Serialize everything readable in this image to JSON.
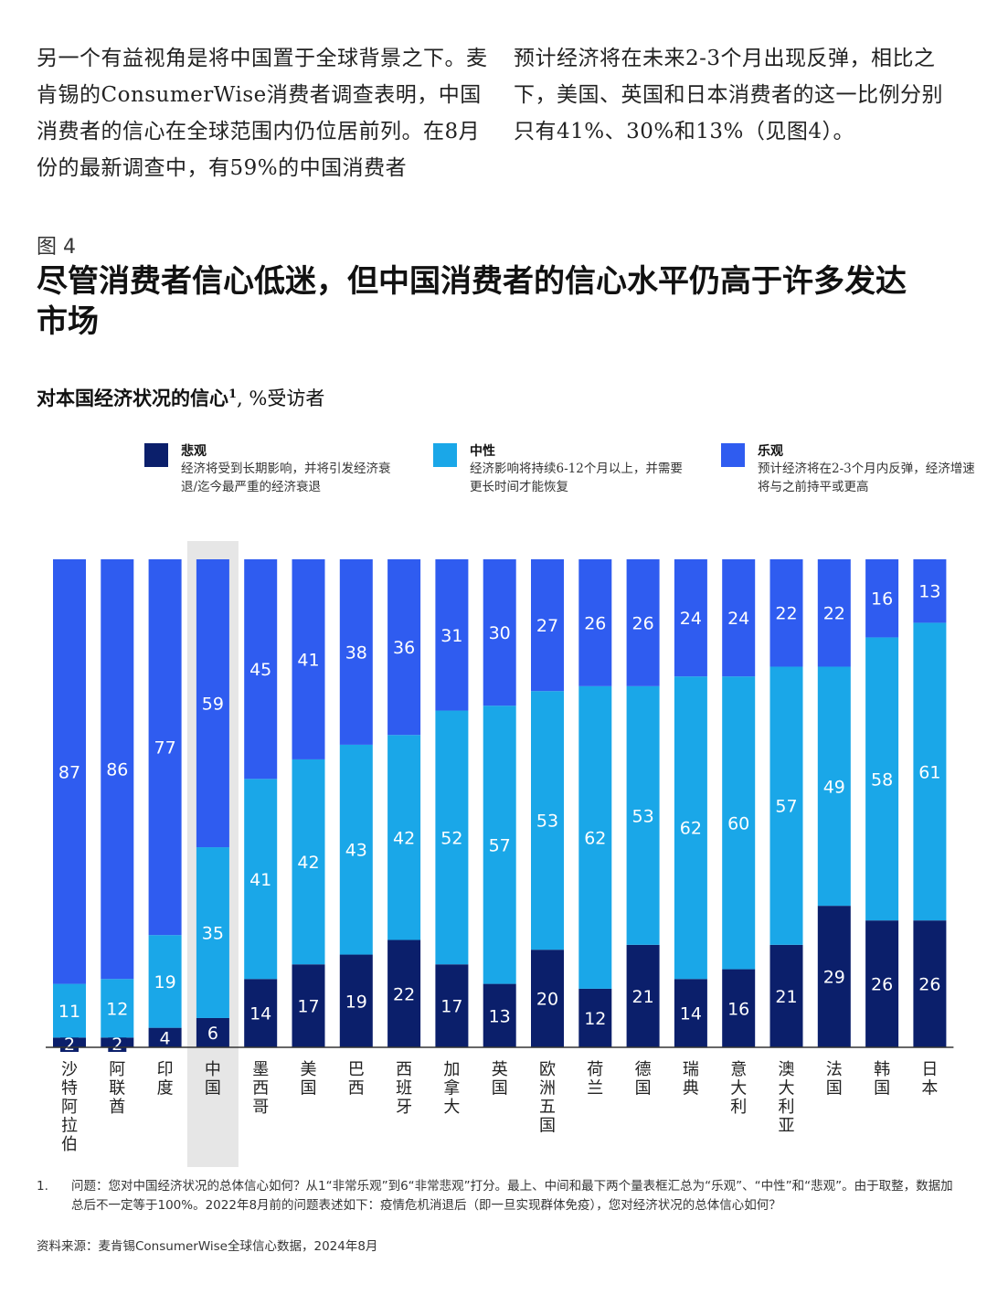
{
  "intro": {
    "left_paragraph": "另一个有益视角是将中国置于全球背景之下。麦肯锡的ConsumerWise消费者调查表明，中国消费者的信心在全球范围内仍位居前列。在8月份的最新调查中，有59%的中国消费者",
    "right_paragraph": "预计经济将在未来2-3个月出现反弹，相比之下，美国、英国和日本消费者的这一比例分别只有41%、30%和13%（见图4）。"
  },
  "figure": {
    "number": "图 4",
    "title": "尽管消费者信心低迷，但中国消费者的信心水平仍高于许多发达市场",
    "subtitle": "对本国经济状况的信心",
    "subtitle_sup": "1",
    "subtitle_unit": ", %受访者"
  },
  "legend": [
    {
      "name": "悲观",
      "description": "经济将受到长期影响，并将引发经济衰退/迄今最严重的经济衰退",
      "color": "#0b1f6b"
    },
    {
      "name": "中性",
      "description": "经济影响将持续6-12个月以上，并需要更长时间才能恢复",
      "color": "#1aa7e8"
    },
    {
      "name": "乐观",
      "description": "预计经济将在2-3个月内反弹，经济增速将与之前持平或更高",
      "color": "#2f5cf0"
    }
  ],
  "chart_data": {
    "type": "bar",
    "stacked": true,
    "orientation": "vertical",
    "highlight_category": "中国",
    "ylim": [
      0,
      100
    ],
    "categories": [
      "沙特阿拉伯",
      "阿联酋",
      "印度",
      "中国",
      "墨西哥",
      "美国",
      "巴西",
      "西班牙",
      "加拿大",
      "英国",
      "欧洲五国",
      "荷兰",
      "德国",
      "瑞典",
      "意大利",
      "澳大利亚",
      "法国",
      "韩国",
      "日本"
    ],
    "series": [
      {
        "name": "悲观",
        "color": "#0b1f6b",
        "values": [
          2,
          2,
          4,
          6,
          14,
          17,
          19,
          22,
          17,
          13,
          20,
          12,
          21,
          14,
          16,
          21,
          29,
          26,
          26
        ]
      },
      {
        "name": "中性",
        "color": "#1aa7e8",
        "values": [
          11,
          12,
          19,
          35,
          41,
          42,
          43,
          42,
          52,
          57,
          53,
          62,
          53,
          62,
          60,
          57,
          49,
          58,
          61
        ]
      },
      {
        "name": "乐观",
        "color": "#2f5cf0",
        "values": [
          87,
          86,
          77,
          59,
          45,
          41,
          38,
          36,
          31,
          30,
          27,
          26,
          26,
          24,
          24,
          22,
          22,
          16,
          13
        ]
      }
    ]
  },
  "footnote": {
    "number": "1.",
    "text": "问题：您对中国经济状况的总体信心如何？从1“非常乐观”到6“非常悲观”打分。最上、中间和最下两个量表框汇总为“乐观”、“中性”和“悲观”。由于取整，数据加总后不一定等于100%。2022年8月前的问题表述如下：疫情危机消退后（即一旦实现群体免疫），您对经济状况的总体信心如何？"
  },
  "source": "资料来源：麦肯锡ConsumerWise全球信心数据，2024年8月"
}
